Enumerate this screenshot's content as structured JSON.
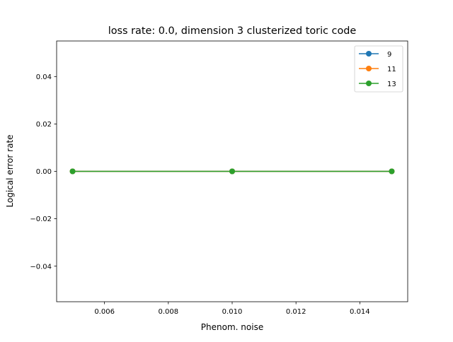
{
  "chart_data": {
    "type": "line",
    "title": "loss rate: 0.0, dimension 3 clusterized toric code",
    "xlabel": "Phenom. noise",
    "ylabel": "Logical error rate",
    "x": [
      0.005,
      0.01,
      0.015
    ],
    "xlim": [
      0.0045,
      0.0155
    ],
    "ylim": [
      -0.055,
      0.055
    ],
    "xticks": [
      0.006,
      0.008,
      0.01,
      0.012,
      0.014
    ],
    "xtick_labels": [
      "0.006",
      "0.008",
      "0.010",
      "0.012",
      "0.014"
    ],
    "yticks": [
      -0.04,
      -0.02,
      0.0,
      0.02,
      0.04
    ],
    "ytick_labels": [
      "−0.04",
      "−0.02",
      "0.00",
      "0.02",
      "0.04"
    ],
    "grid": false,
    "legend_position": "top-right",
    "marker": "circle",
    "series": [
      {
        "name": "9",
        "color": "#1f77b4",
        "values": [
          0.0,
          0.0,
          0.0
        ]
      },
      {
        "name": "11",
        "color": "#ff7f0e",
        "values": [
          0.0,
          0.0,
          0.0
        ]
      },
      {
        "name": "13",
        "color": "#2ca02c",
        "values": [
          0.0,
          0.0,
          0.0
        ]
      }
    ]
  }
}
